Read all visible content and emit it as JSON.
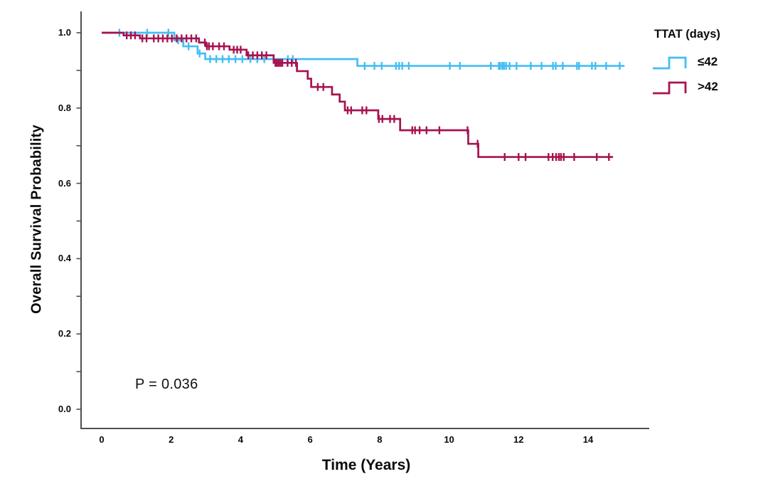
{
  "chart_data": {
    "type": "line",
    "variant": "kaplan_meier_step",
    "title": "",
    "xlabel": "Time (Years)",
    "ylabel": "Overall Survival Probability",
    "p_value_annotation": "P = 0.036",
    "x_ticks": [
      "0",
      "2",
      "4",
      "6",
      "8",
      "10",
      "12",
      "14"
    ],
    "x_tick_values": [
      0,
      2,
      4,
      6,
      8,
      10,
      12,
      14
    ],
    "y_ticks": [
      "1.0",
      "0.8",
      "0.6",
      "0.4",
      "0.2",
      "0.0"
    ],
    "y_tick_values": [
      1.0,
      0.8,
      0.6,
      0.4,
      0.2,
      0.0
    ],
    "x_axis_range_years": [
      0,
      15.8
    ],
    "y_axis_range": [
      0,
      1.0
    ],
    "grid": false,
    "axis_color": "#4f4f4f",
    "text_color": "#0a0a0a",
    "legend": {
      "title": "TTAT (days)",
      "position": "top-right",
      "entries": [
        {
          "label": "≤42",
          "color": "#45BEF2"
        },
        {
          "label": ">42",
          "color": "#A61350"
        }
      ]
    },
    "series": [
      {
        "name": "≤42",
        "color": "#45BEF2",
        "steps": [
          [
            0,
            1.0
          ],
          [
            2.09,
            0.98
          ],
          [
            2.35,
            0.964
          ],
          [
            2.76,
            0.945
          ],
          [
            2.98,
            0.93
          ],
          [
            7.36,
            0.912
          ]
        ],
        "end_time": 15.05,
        "censor_times": [
          0.51,
          1.31,
          1.92,
          2.2,
          2.5,
          2.82,
          3.12,
          3.3,
          3.48,
          3.66,
          3.85,
          4.05,
          4.28,
          4.48,
          4.68,
          5.36,
          5.5,
          7.57,
          7.85,
          8.06,
          8.47,
          8.56,
          8.65,
          8.84,
          10.02,
          10.31,
          11.2,
          11.43,
          11.47,
          11.53,
          11.58,
          11.64,
          11.74,
          11.94,
          12.35,
          12.66,
          12.99,
          13.07,
          13.27,
          13.68,
          13.74,
          14.11,
          14.21,
          14.52,
          14.91
        ]
      },
      {
        "name": ">42",
        "color": "#A61350",
        "steps": [
          [
            0,
            1.0
          ],
          [
            0.63,
            0.993
          ],
          [
            1.1,
            0.985
          ],
          [
            2.8,
            0.974
          ],
          [
            3.0,
            0.964
          ],
          [
            3.68,
            0.955
          ],
          [
            4.17,
            0.94
          ],
          [
            4.95,
            0.92
          ],
          [
            5.62,
            0.898
          ],
          [
            5.93,
            0.878
          ],
          [
            6.03,
            0.856
          ],
          [
            6.63,
            0.836
          ],
          [
            6.85,
            0.817
          ],
          [
            7.0,
            0.794
          ],
          [
            7.96,
            0.771
          ],
          [
            8.59,
            0.741
          ],
          [
            10.55,
            0.705
          ],
          [
            10.84,
            0.67
          ]
        ],
        "end_time": 14.72,
        "censor_times": [
          0.72,
          0.84,
          0.96,
          1.17,
          1.29,
          1.5,
          1.63,
          1.76,
          1.89,
          2.02,
          2.16,
          2.3,
          2.44,
          2.58,
          2.72,
          2.97,
          3.03,
          3.09,
          3.2,
          3.38,
          3.52,
          3.8,
          3.9,
          4.0,
          4.22,
          4.35,
          4.48,
          4.61,
          4.74,
          5.0,
          5.05,
          5.1,
          5.15,
          5.2,
          5.35,
          5.47,
          5.59,
          6.22,
          6.38,
          7.08,
          7.18,
          7.5,
          7.62,
          7.98,
          8.08,
          8.3,
          8.42,
          8.94,
          9.02,
          9.15,
          9.35,
          9.72,
          10.53,
          10.82,
          11.6,
          12.0,
          12.2,
          12.86,
          12.98,
          13.08,
          13.16,
          13.22,
          13.3,
          13.6,
          14.25,
          14.6
        ]
      }
    ]
  }
}
